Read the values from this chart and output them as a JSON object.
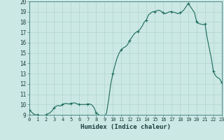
{
  "xlabel": "Humidex (Indice chaleur)",
  "x_values": [
    0.0,
    0.25,
    0.5,
    0.75,
    1.0,
    1.25,
    1.5,
    1.75,
    2.0,
    2.25,
    2.5,
    2.75,
    3.0,
    3.25,
    3.5,
    3.75,
    4.0,
    4.25,
    4.5,
    4.75,
    5.0,
    5.25,
    5.5,
    5.75,
    6.0,
    6.25,
    6.5,
    6.75,
    7.0,
    7.25,
    7.5,
    7.75,
    8.0,
    8.25,
    8.5,
    8.75,
    9.0,
    9.25,
    9.5,
    9.75,
    10.0,
    10.25,
    10.5,
    10.75,
    11.0,
    11.25,
    11.5,
    11.75,
    12.0,
    12.25,
    12.5,
    12.75,
    13.0,
    13.25,
    13.5,
    13.75,
    14.0,
    14.25,
    14.5,
    14.75,
    15.0,
    15.25,
    15.5,
    15.75,
    16.0,
    16.25,
    16.5,
    16.75,
    17.0,
    17.25,
    17.5,
    17.75,
    18.0,
    18.25,
    18.5,
    18.75,
    19.0,
    19.25,
    19.5,
    19.75,
    20.0,
    20.25,
    20.5,
    20.75,
    21.0,
    21.25,
    21.5,
    21.75,
    22.0,
    22.25,
    22.5,
    22.75,
    23.0
  ],
  "y_values": [
    9.5,
    9.3,
    9.1,
    9.0,
    9.0,
    8.95,
    8.9,
    8.9,
    9.0,
    9.1,
    9.2,
    9.4,
    9.7,
    9.85,
    9.9,
    9.85,
    10.0,
    10.1,
    10.1,
    10.05,
    10.1,
    10.15,
    10.15,
    10.05,
    10.0,
    10.0,
    10.0,
    10.0,
    10.05,
    10.05,
    9.95,
    9.7,
    9.2,
    9.05,
    8.9,
    8.85,
    8.8,
    9.2,
    10.5,
    12.0,
    13.0,
    13.8,
    14.5,
    15.0,
    15.3,
    15.5,
    15.6,
    15.8,
    16.2,
    16.5,
    16.8,
    17.0,
    17.1,
    17.3,
    17.6,
    18.0,
    18.2,
    18.7,
    18.85,
    19.0,
    19.0,
    19.1,
    19.15,
    19.05,
    18.9,
    18.8,
    18.9,
    19.0,
    19.0,
    18.95,
    18.9,
    18.8,
    18.9,
    19.0,
    19.2,
    19.5,
    19.8,
    19.5,
    19.2,
    18.9,
    18.0,
    17.85,
    17.8,
    17.75,
    17.8,
    16.5,
    15.5,
    14.5,
    13.2,
    12.8,
    12.6,
    12.5,
    12.1
  ],
  "ylim": [
    9,
    20
  ],
  "xlim": [
    0,
    23
  ],
  "line_color": "#1a6b5a",
  "marker_color": "#1a6b5a",
  "bg_color": "#cce8e4",
  "grid_color": "#b0d4ce",
  "border_color": "#4a8888",
  "tick_label_color": "#1a4040",
  "xlabel_color": "#1a4040",
  "yticks": [
    9,
    10,
    11,
    12,
    13,
    14,
    15,
    16,
    17,
    18,
    19,
    20
  ],
  "xticks": [
    0,
    1,
    2,
    3,
    4,
    5,
    6,
    7,
    8,
    9,
    10,
    11,
    12,
    13,
    14,
    15,
    16,
    17,
    18,
    19,
    20,
    21,
    22,
    23
  ],
  "marker_x": [
    0,
    1,
    2,
    3,
    4,
    5,
    6,
    7,
    8,
    9,
    10,
    11,
    12,
    13,
    14,
    15,
    16,
    17,
    18,
    19,
    20,
    21,
    22,
    23
  ],
  "marker_y": [
    9.5,
    9.0,
    9.0,
    9.7,
    10.0,
    10.1,
    10.0,
    10.05,
    9.2,
    8.8,
    13.0,
    15.3,
    16.2,
    17.1,
    18.2,
    19.0,
    18.9,
    19.0,
    18.9,
    19.8,
    18.0,
    17.8,
    13.2,
    12.1
  ]
}
